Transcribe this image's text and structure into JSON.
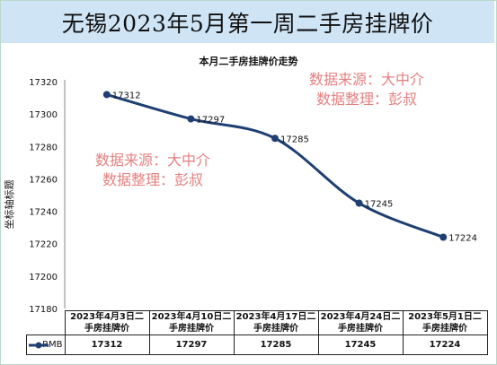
{
  "header": {
    "title": "无锡2023年5月第一周二手房挂牌价"
  },
  "watermarks": [
    {
      "line1": "数据来源：大中介",
      "line2": "数据整理：彭叔"
    },
    {
      "line1": "数据来源：大中介",
      "line2": "数据整理：彭叔"
    }
  ],
  "colors": {
    "line": "#1f3f73",
    "title_band": "#cfe5f6",
    "watermark": "#e48080"
  },
  "chart_data": {
    "type": "line",
    "title": "本月二手房挂牌价走势",
    "ylabel": "坐标轴标题",
    "xlabel": "",
    "categories": [
      "2023年4月3日二手房挂牌价",
      "2023年4月10日二手房挂牌价",
      "2023年4月17日二手房挂牌价",
      "2023年4月24日二手房挂牌价",
      "2023年5月1日二手房挂牌价"
    ],
    "category_lines": [
      [
        "2023年4月3日二",
        "手房挂牌价"
      ],
      [
        "2023年4月10日二",
        "手房挂牌价"
      ],
      [
        "2023年4月17日二",
        "手房挂牌价"
      ],
      [
        "2023年4月24日二",
        "手房挂牌价"
      ],
      [
        "2023年5月1日二",
        "手房挂牌价"
      ]
    ],
    "series": [
      {
        "name": "RMB",
        "values": [
          17312,
          17297,
          17285,
          17245,
          17224
        ]
      }
    ],
    "ylim": [
      17180,
      17320
    ],
    "yticks": [
      17180,
      17200,
      17220,
      17240,
      17260,
      17280,
      17300,
      17320
    ],
    "grid": false,
    "legend": "data-table",
    "smooth": true
  }
}
